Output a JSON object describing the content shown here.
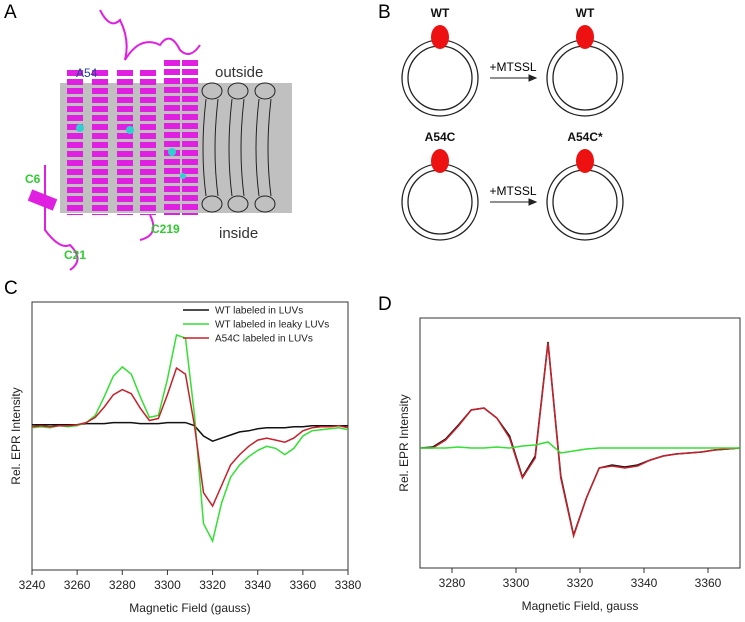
{
  "panel_a": {
    "label": "A",
    "residues": [
      "A54",
      "C6",
      "C219",
      "C21"
    ],
    "outside": "outside",
    "inside": "inside"
  },
  "panel_b": {
    "label": "B",
    "top_left": "WT",
    "top_right": "WT",
    "top_arrow": "+MTSSL",
    "bottom_left": "A54C",
    "bottom_right": "A54C*",
    "bottom_arrow": "+MTSSL"
  },
  "chart_data": [
    {
      "type": "line",
      "label": "C",
      "xlabel": "Magnetic Field (gauss)",
      "ylabel": "Rel. EPR Intensity",
      "xlim": [
        3240,
        3380
      ],
      "xticks": [
        3240,
        3260,
        3280,
        3300,
        3320,
        3340,
        3360,
        3380
      ],
      "ylim": [
        -1.4,
        1.2
      ],
      "legend": "upper right",
      "x": [
        3240,
        3244,
        3248,
        3252,
        3256,
        3260,
        3264,
        3268,
        3272,
        3276,
        3280,
        3284,
        3288,
        3292,
        3296,
        3300,
        3304,
        3308,
        3312,
        3316,
        3320,
        3324,
        3328,
        3332,
        3336,
        3340,
        3344,
        3348,
        3352,
        3356,
        3360,
        3364,
        3368,
        3372,
        3376,
        3380
      ],
      "series": [
        {
          "name": "WT labeled in LUVs",
          "color": "#111111",
          "values": [
            0.01,
            0.01,
            0.01,
            0.01,
            0.01,
            0.01,
            0.02,
            0.02,
            0.02,
            0.03,
            0.03,
            0.03,
            0.02,
            0.02,
            0.02,
            0.03,
            0.03,
            0.03,
            0.0,
            -0.1,
            -0.15,
            -0.12,
            -0.09,
            -0.06,
            -0.05,
            -0.03,
            -0.02,
            -0.02,
            -0.02,
            -0.01,
            -0.01,
            0,
            0,
            0,
            0,
            0
          ]
        },
        {
          "name": "WT labeled in leaky LUVs",
          "color": "#33e033",
          "values": [
            -0.02,
            -0.01,
            -0.02,
            0,
            -0.01,
            0,
            0.03,
            0.1,
            0.28,
            0.48,
            0.57,
            0.5,
            0.28,
            0.08,
            0.1,
            0.45,
            0.88,
            0.85,
            0.1,
            -0.95,
            -1.12,
            -0.75,
            -0.5,
            -0.38,
            -0.3,
            -0.24,
            -0.2,
            -0.22,
            -0.28,
            -0.22,
            -0.1,
            -0.05,
            -0.04,
            -0.03,
            -0.02,
            -0.04
          ]
        },
        {
          "name": "A54C labeled in LUVs",
          "color": "#c8202a",
          "values": [
            -0.01,
            0,
            -0.01,
            0,
            0,
            0.01,
            0.03,
            0.08,
            0.18,
            0.3,
            0.35,
            0.31,
            0.17,
            0.05,
            0.07,
            0.3,
            0.56,
            0.5,
            0.0,
            -0.65,
            -0.78,
            -0.58,
            -0.38,
            -0.28,
            -0.2,
            -0.14,
            -0.12,
            -0.14,
            -0.16,
            -0.12,
            -0.05,
            -0.02,
            -0.01,
            -0.01,
            0,
            -0.02
          ]
        }
      ]
    },
    {
      "type": "line",
      "label": "D",
      "xlabel": "Magnetic Field, gauss",
      "ylabel": "Rel. EPR Intensity",
      "xlim": [
        3270,
        3370
      ],
      "xticks": [
        3280,
        3300,
        3320,
        3340,
        3360
      ],
      "ylim": [
        -1.2,
        1.3
      ],
      "x": [
        3270,
        3274,
        3278,
        3282,
        3286,
        3290,
        3294,
        3298,
        3302,
        3306,
        3310,
        3314,
        3318,
        3322,
        3326,
        3330,
        3334,
        3338,
        3342,
        3346,
        3350,
        3354,
        3358,
        3362,
        3366,
        3370
      ],
      "series": [
        {
          "color": "#111111",
          "values": [
            0.0,
            0.01,
            0.09,
            0.23,
            0.38,
            0.4,
            0.3,
            0.12,
            -0.29,
            -0.08,
            1.06,
            -0.28,
            -0.87,
            -0.5,
            -0.2,
            -0.17,
            -0.19,
            -0.17,
            -0.12,
            -0.08,
            -0.06,
            -0.05,
            -0.04,
            -0.02,
            -0.01,
            0.0
          ]
        },
        {
          "color": "#c8202a",
          "values": [
            0.0,
            0.0,
            0.08,
            0.22,
            0.38,
            0.4,
            0.3,
            0.1,
            -0.3,
            -0.1,
            1.05,
            -0.3,
            -0.88,
            -0.5,
            -0.2,
            -0.18,
            -0.2,
            -0.18,
            -0.12,
            -0.08,
            -0.06,
            -0.05,
            -0.04,
            -0.02,
            -0.01,
            0.0
          ]
        },
        {
          "color": "#33e033",
          "values": [
            0,
            0,
            0,
            0.01,
            0,
            0,
            0.01,
            0,
            0.02,
            0.03,
            0.06,
            -0.05,
            -0.03,
            -0.01,
            0,
            0,
            0,
            0,
            0,
            0,
            0,
            0,
            0,
            0,
            0,
            0
          ]
        }
      ]
    }
  ]
}
